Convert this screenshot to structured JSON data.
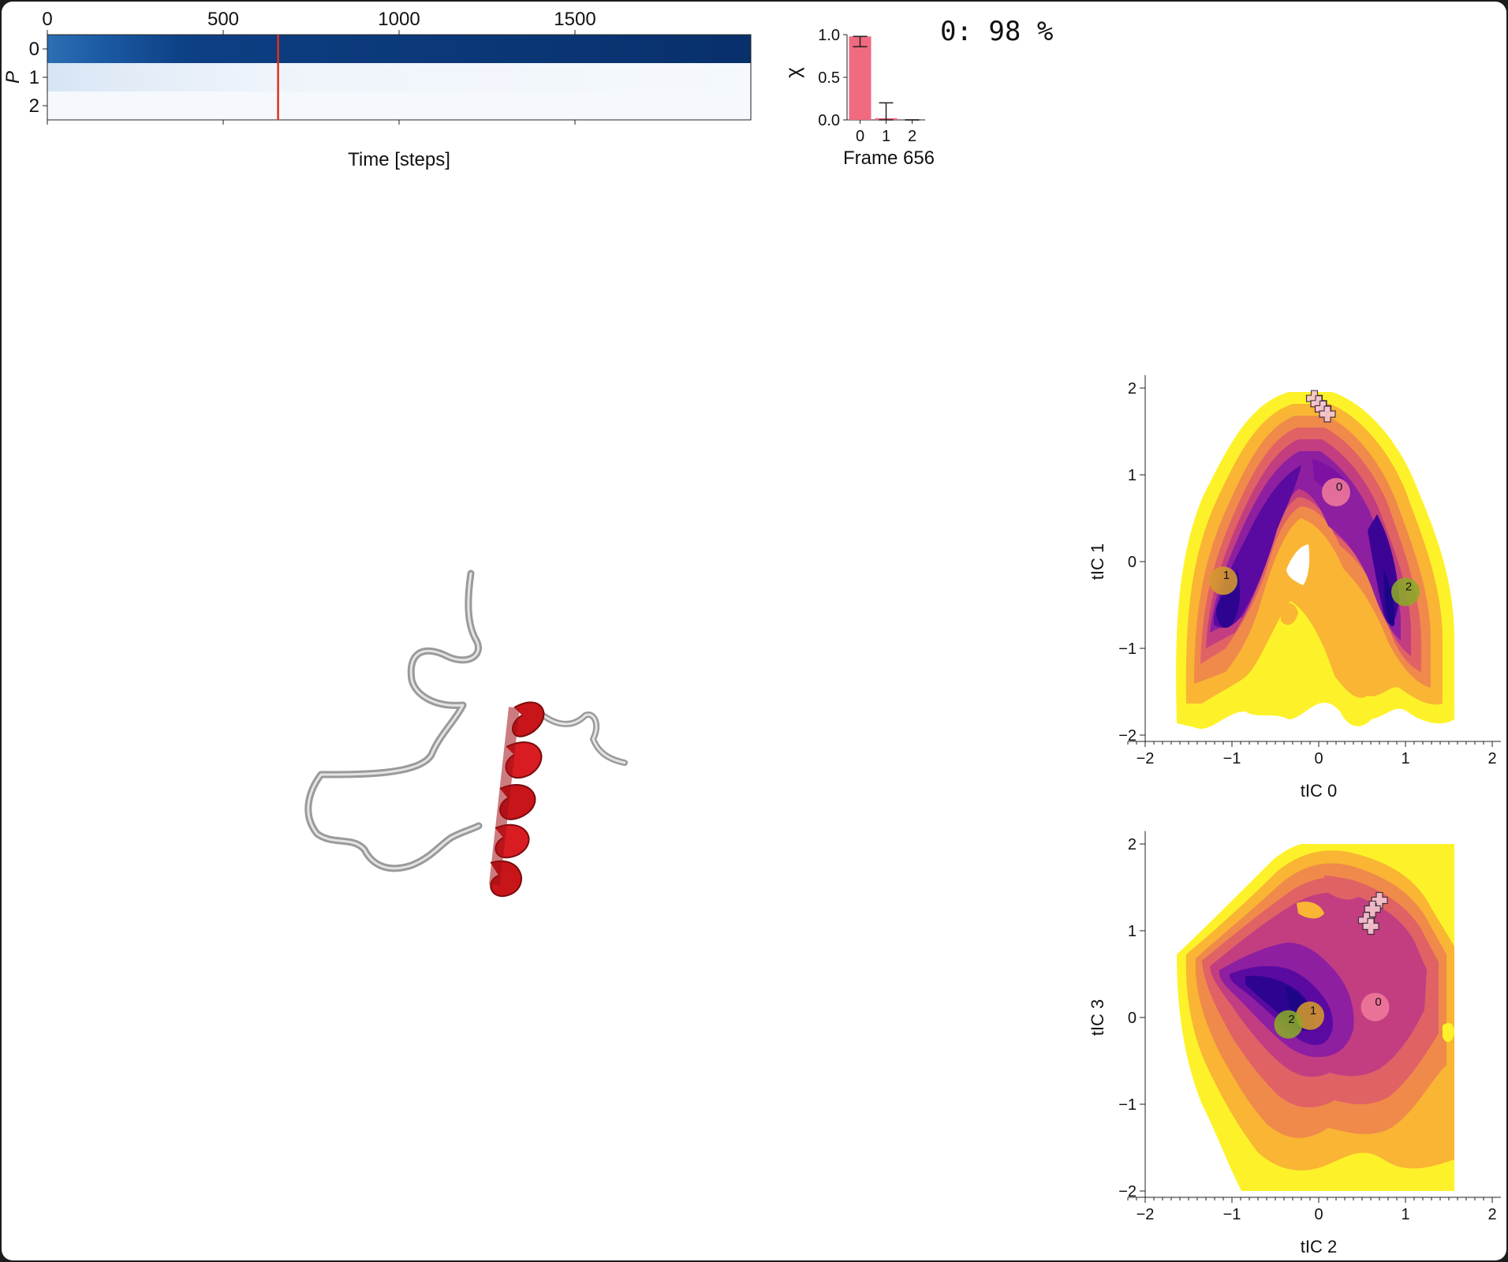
{
  "status": {
    "state": "0",
    "percent": "98",
    "text": "0: 98 %"
  },
  "chart_data": [
    {
      "id": "probability-heatmap",
      "type": "heatmap",
      "xlabel": "Time [steps]",
      "ylabel": "P",
      "x_ticks": [
        0,
        500,
        1000,
        1500
      ],
      "y_ticks": [
        0,
        1,
        2
      ],
      "xlim": [
        0,
        2000
      ],
      "current_step": 656,
      "marker_color": "#e0301e",
      "cmap": "Blues"
    },
    {
      "id": "chi-bar",
      "type": "bar",
      "title": "Frame 656",
      "ylabel": "χ",
      "categories": [
        "0",
        "1",
        "2"
      ],
      "values": [
        0.98,
        0.02,
        0.0
      ],
      "error_upper": [
        0.98,
        0.2,
        0.0
      ],
      "error_lower": [
        0.86,
        0.0,
        0.0
      ],
      "ylim": [
        0,
        1.0
      ],
      "y_ticks": [
        "0.0",
        "0.5",
        "1.0"
      ],
      "color": "#f06a80"
    },
    {
      "id": "fes-tic0-tic1",
      "type": "heatmap",
      "xlabel": "tIC 0",
      "ylabel": "tIC 1",
      "xlim": [
        -2,
        2
      ],
      "ylim": [
        -2,
        2
      ],
      "x_ticks": [
        "−2",
        "−1",
        "0",
        "1",
        "2"
      ],
      "y_ticks": [
        "−2",
        "−1",
        "0",
        "1",
        "2"
      ],
      "cmap": "plasma",
      "states": [
        {
          "label": "0",
          "x": 0.2,
          "y": 0.8,
          "color": "#f07a9a"
        },
        {
          "label": "1",
          "x": -1.1,
          "y": -0.22,
          "color": "#d49a2a"
        },
        {
          "label": "2",
          "x": 1.0,
          "y": -0.35,
          "color": "#8aaa28"
        }
      ],
      "trajectory": [
        [
          -0.05,
          1.88
        ],
        [
          0.0,
          1.82
        ],
        [
          0.05,
          1.76
        ],
        [
          0.1,
          1.7
        ]
      ]
    },
    {
      "id": "fes-tic2-tic3",
      "type": "heatmap",
      "xlabel": "tIC 2",
      "ylabel": "tIC 3",
      "xlim": [
        -2,
        2
      ],
      "ylim": [
        -2,
        2
      ],
      "x_ticks": [
        "−2",
        "−1",
        "0",
        "1",
        "2"
      ],
      "y_ticks": [
        "−2",
        "−1",
        "0",
        "1",
        "2"
      ],
      "cmap": "plasma",
      "states": [
        {
          "label": "0",
          "x": 0.65,
          "y": 0.12,
          "color": "#f07a9a"
        },
        {
          "label": "1",
          "x": -0.1,
          "y": 0.02,
          "color": "#d49a2a"
        },
        {
          "label": "2",
          "x": -0.35,
          "y": -0.08,
          "color": "#8aaa28"
        }
      ],
      "trajectory": [
        [
          0.7,
          1.35
        ],
        [
          0.62,
          1.25
        ],
        [
          0.55,
          1.12
        ],
        [
          0.6,
          1.05
        ]
      ]
    }
  ]
}
